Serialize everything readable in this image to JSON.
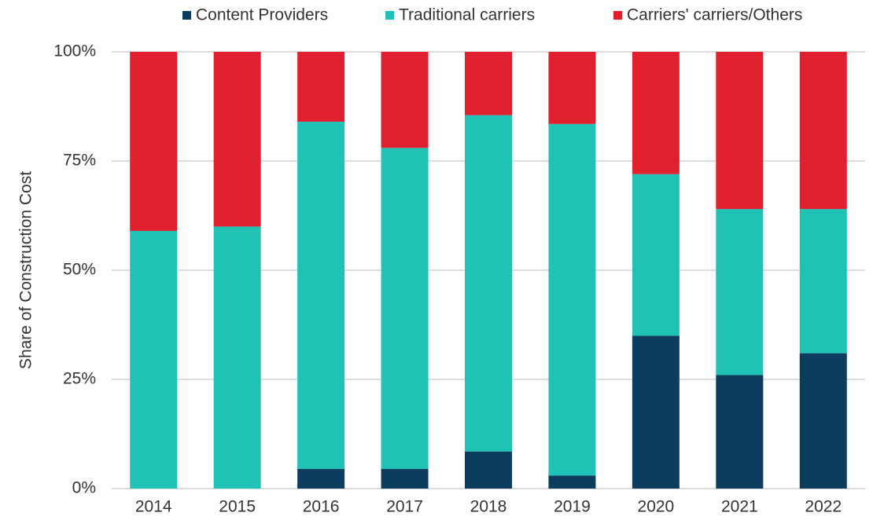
{
  "chart_data": {
    "type": "stacked_bar",
    "ylabel": "Share of Construction Cost",
    "categories": [
      "2014",
      "2015",
      "2016",
      "2017",
      "2018",
      "2019",
      "2020",
      "2021",
      "2022"
    ],
    "series": [
      {
        "name": "Content Providers",
        "color": "#0d3d5e",
        "values": [
          0,
          0,
          4.5,
          4.5,
          8.5,
          3,
          35,
          26,
          31
        ]
      },
      {
        "name": "Traditional carriers",
        "color": "#1fc2b5",
        "values": [
          59,
          60,
          79.5,
          73.5,
          77,
          80.5,
          37,
          38,
          33
        ]
      },
      {
        "name": "Carriers' carriers/Others",
        "color": "#e0202e",
        "values": [
          41,
          40,
          16,
          22,
          14.5,
          16.5,
          28,
          36,
          36
        ]
      }
    ],
    "ylim": [
      0,
      100
    ],
    "yticks": [
      {
        "value": 0,
        "label": "0%"
      },
      {
        "value": 25,
        "label": "25%"
      },
      {
        "value": 50,
        "label": "50%"
      },
      {
        "value": 75,
        "label": "75%"
      },
      {
        "value": 100,
        "label": "100%"
      }
    ],
    "grid": true,
    "legend": "top"
  }
}
